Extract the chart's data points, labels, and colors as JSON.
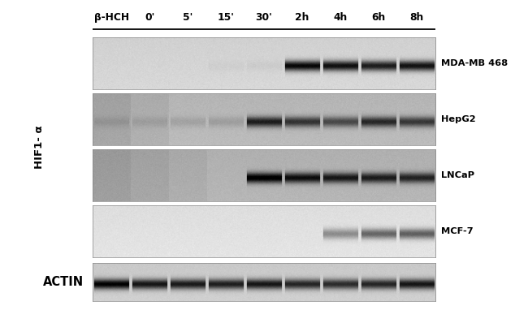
{
  "time_labels": [
    "β-HCH",
    "0'",
    "5'",
    "15'",
    "30'",
    "2h",
    "4h",
    "6h",
    "8h"
  ],
  "row_labels": [
    "MDA-MB 468",
    "HepG2",
    "LNCaP",
    "MCF-7"
  ],
  "actin_label": "ACTIN",
  "hif1a_label": "HIF1- α",
  "background_color": "#ffffff",
  "num_lanes": 9,
  "band_intensities": {
    "MDA-MB 468": [
      0.0,
      0.0,
      0.0,
      0.03,
      0.04,
      0.92,
      0.88,
      0.82,
      0.87
    ],
    "HepG2": [
      0.08,
      0.08,
      0.1,
      0.12,
      0.7,
      0.6,
      0.5,
      0.65,
      0.58
    ],
    "LNCaP": [
      0.0,
      0.0,
      0.0,
      0.0,
      0.85,
      0.75,
      0.7,
      0.68,
      0.65
    ],
    "MCF-7": [
      0.0,
      0.0,
      0.0,
      0.0,
      0.0,
      0.0,
      0.38,
      0.55,
      0.58
    ],
    "ACTIN": [
      0.92,
      0.82,
      0.8,
      0.78,
      0.82,
      0.75,
      0.72,
      0.75,
      0.82
    ]
  },
  "bg_gray": {
    "MDA-MB 468": 0.83,
    "HepG2": 0.72,
    "LNCaP": 0.7,
    "MCF-7": 0.88,
    "ACTIN": 0.8
  },
  "left_dark_lanes": {
    "MDA-MB 468": 0,
    "HepG2": 2,
    "LNCaP": 3,
    "MCF-7": 0,
    "ACTIN": 0
  }
}
